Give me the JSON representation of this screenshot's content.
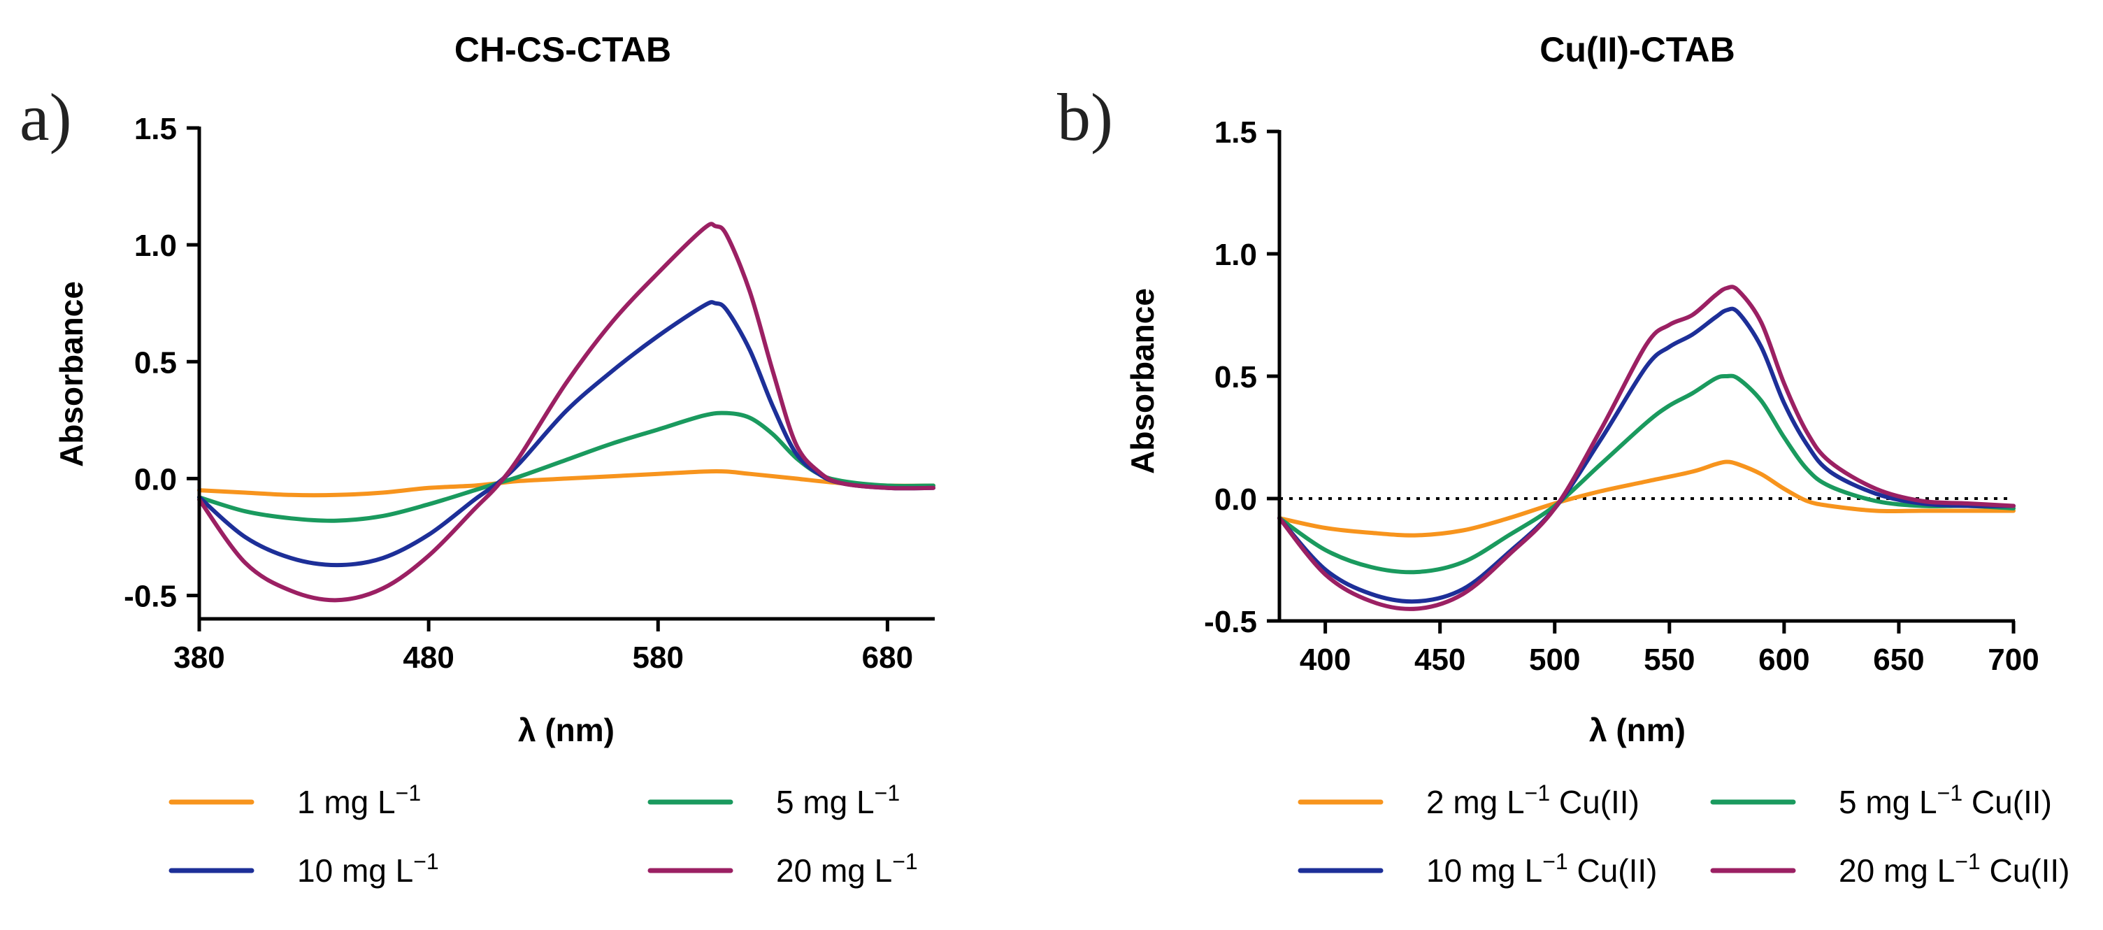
{
  "figure": {
    "panels": [
      {
        "letter": "a)"
      },
      {
        "letter": "b)"
      }
    ]
  },
  "chart_data": [
    {
      "type": "line",
      "title": "CH-CS-CTAB",
      "xlabel": "λ (nm)",
      "ylabel": "Absorbance",
      "xlim": [
        380,
        700
      ],
      "ylim": [
        -0.6,
        1.5
      ],
      "xticks": [
        380,
        480,
        580,
        680
      ],
      "xtick_labels": [
        "380",
        "480",
        "580",
        "680"
      ],
      "yticks": [
        -0.5,
        0.0,
        0.5,
        1.0,
        1.5
      ],
      "ytick_labels": [
        "-0.5",
        "0.0",
        "0.5",
        "1.0",
        "1.5"
      ],
      "zero_line": false,
      "legend": {
        "position": "bottom",
        "columns": 2
      },
      "series": [
        {
          "name": "1 mg L",
          "superscript": "−1",
          "suffix": "",
          "color": "#F7941D",
          "x": [
            380,
            400,
            420,
            440,
            460,
            480,
            500,
            510,
            520,
            540,
            560,
            580,
            600,
            610,
            620,
            640,
            660,
            680,
            700
          ],
          "y": [
            -0.05,
            -0.06,
            -0.07,
            -0.07,
            -0.06,
            -0.04,
            -0.03,
            -0.02,
            -0.01,
            0.0,
            0.01,
            0.02,
            0.03,
            0.03,
            0.02,
            0.0,
            -0.02,
            -0.03,
            -0.03
          ]
        },
        {
          "name": "5 mg L",
          "superscript": "−1",
          "suffix": "",
          "color": "#1A9A5E",
          "x": [
            380,
            400,
            420,
            440,
            460,
            480,
            500,
            510,
            520,
            540,
            560,
            580,
            600,
            610,
            620,
            630,
            640,
            650,
            660,
            680,
            700
          ],
          "y": [
            -0.08,
            -0.14,
            -0.17,
            -0.18,
            -0.16,
            -0.11,
            -0.05,
            -0.02,
            0.01,
            0.08,
            0.15,
            0.21,
            0.27,
            0.28,
            0.26,
            0.19,
            0.09,
            0.02,
            -0.01,
            -0.03,
            -0.03
          ]
        },
        {
          "name": "10 mg L",
          "superscript": "−1",
          "suffix": "",
          "color": "#1D2F98",
          "x": [
            380,
            400,
            420,
            440,
            460,
            480,
            500,
            510,
            520,
            540,
            560,
            580,
            600,
            605,
            610,
            620,
            630,
            640,
            650,
            660,
            680,
            700
          ],
          "y": [
            -0.08,
            -0.25,
            -0.34,
            -0.37,
            -0.34,
            -0.24,
            -0.09,
            -0.02,
            0.07,
            0.29,
            0.46,
            0.61,
            0.74,
            0.75,
            0.72,
            0.55,
            0.31,
            0.11,
            0.02,
            -0.02,
            -0.04,
            -0.04
          ]
        },
        {
          "name": "20 mg L",
          "superscript": "−1",
          "suffix": "",
          "color": "#9B2063",
          "x": [
            380,
            400,
            420,
            440,
            460,
            480,
            500,
            510,
            520,
            540,
            560,
            580,
            600,
            605,
            610,
            620,
            630,
            640,
            650,
            660,
            680,
            700
          ],
          "y": [
            -0.09,
            -0.36,
            -0.48,
            -0.52,
            -0.47,
            -0.33,
            -0.13,
            -0.03,
            0.1,
            0.41,
            0.67,
            0.88,
            1.07,
            1.08,
            1.04,
            0.8,
            0.46,
            0.15,
            0.03,
            -0.02,
            -0.04,
            -0.04
          ]
        }
      ]
    },
    {
      "type": "line",
      "title": "Cu(II)-CTAB",
      "xlabel": "λ (nm)",
      "ylabel": "Absorbance",
      "xlim": [
        380,
        700
      ],
      "ylim": [
        -0.5,
        1.5
      ],
      "xticks": [
        400,
        450,
        500,
        550,
        600,
        650,
        700
      ],
      "xtick_labels": [
        "400",
        "450",
        "500",
        "550",
        "600",
        "650",
        "700"
      ],
      "yticks": [
        -0.5,
        0.0,
        0.5,
        1.0,
        1.5
      ],
      "ytick_labels": [
        "-0.5",
        "0.0",
        "0.5",
        "1.0",
        "1.5"
      ],
      "zero_line": true,
      "legend": {
        "position": "bottom",
        "columns": 2
      },
      "series": [
        {
          "name": "2 mg L",
          "superscript": "−1",
          "suffix": " Cu(II)",
          "color": "#F7941D",
          "x": [
            380,
            400,
            420,
            440,
            460,
            480,
            500,
            520,
            540,
            560,
            570,
            575,
            580,
            590,
            600,
            610,
            620,
            640,
            660,
            680,
            700
          ],
          "y": [
            -0.08,
            -0.12,
            -0.14,
            -0.15,
            -0.13,
            -0.08,
            -0.02,
            0.03,
            0.07,
            0.11,
            0.14,
            0.15,
            0.14,
            0.1,
            0.04,
            -0.01,
            -0.03,
            -0.05,
            -0.05,
            -0.05,
            -0.05
          ]
        },
        {
          "name": "5 mg L",
          "superscript": "−1",
          "suffix": " Cu(II)",
          "color": "#1A9A5E",
          "x": [
            380,
            400,
            420,
            440,
            460,
            480,
            500,
            520,
            540,
            550,
            560,
            570,
            575,
            580,
            590,
            600,
            610,
            620,
            640,
            660,
            680,
            700
          ],
          "y": [
            -0.08,
            -0.21,
            -0.28,
            -0.3,
            -0.26,
            -0.15,
            -0.03,
            0.14,
            0.31,
            0.38,
            0.43,
            0.49,
            0.5,
            0.49,
            0.4,
            0.25,
            0.12,
            0.05,
            -0.01,
            -0.03,
            -0.03,
            -0.04
          ]
        },
        {
          "name": "10 mg L",
          "superscript": "−1",
          "suffix": " Cu(II)",
          "color": "#1D2F98",
          "x": [
            380,
            400,
            420,
            440,
            460,
            480,
            500,
            520,
            540,
            550,
            560,
            570,
            575,
            580,
            590,
            600,
            610,
            620,
            640,
            660,
            680,
            700
          ],
          "y": [
            -0.08,
            -0.29,
            -0.39,
            -0.42,
            -0.37,
            -0.22,
            -0.04,
            0.24,
            0.54,
            0.62,
            0.67,
            0.74,
            0.77,
            0.76,
            0.62,
            0.39,
            0.22,
            0.11,
            0.02,
            -0.02,
            -0.03,
            -0.03
          ]
        },
        {
          "name": "20 mg L",
          "superscript": "−1",
          "suffix": " Cu(II)",
          "color": "#9B2063",
          "x": [
            380,
            400,
            420,
            440,
            460,
            480,
            500,
            520,
            540,
            550,
            560,
            570,
            575,
            580,
            590,
            600,
            610,
            620,
            640,
            660,
            680,
            700
          ],
          "y": [
            -0.08,
            -0.31,
            -0.42,
            -0.45,
            -0.39,
            -0.23,
            -0.04,
            0.28,
            0.63,
            0.71,
            0.75,
            0.83,
            0.86,
            0.85,
            0.72,
            0.47,
            0.27,
            0.15,
            0.04,
            -0.01,
            -0.02,
            -0.03
          ]
        }
      ]
    }
  ]
}
